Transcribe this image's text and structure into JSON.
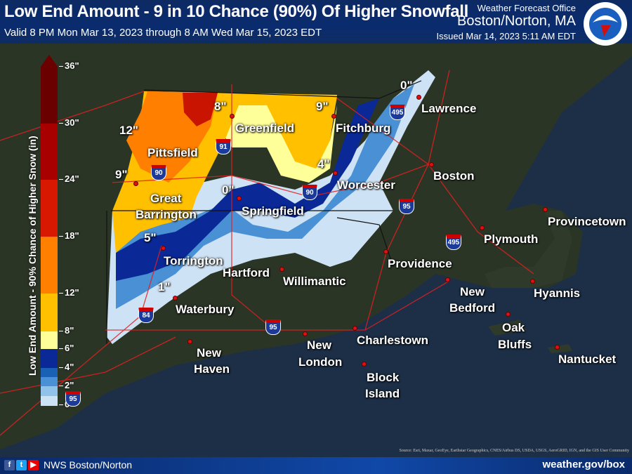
{
  "header": {
    "title": "Low End Amount - 9 in 10 Chance (90%) Of Higher Snowfall",
    "valid": "Valid 8 PM Mon Mar 13, 2023 through 8 AM Wed Mar 15, 2023 EDT",
    "office_label": "Weather Forecast Office",
    "office": "Boston/Norton, MA",
    "issued": "Issued Mar 14, 2023 5:11 AM EDT",
    "logo_text": "NATIONAL WEATHER SERVICE"
  },
  "legend": {
    "title": "Low End Amount - 90% Chance of Higher Snow (in)",
    "ticks": [
      "36\"",
      "30\"",
      "24\"",
      "18\"",
      "12\"",
      "8\"",
      "6\"",
      "4\"",
      "2\"",
      "0\""
    ],
    "bins": [
      {
        "range": "30-36",
        "color": "#6b0000"
      },
      {
        "range": "24-30",
        "color": "#a80000"
      },
      {
        "range": "18-24",
        "color": "#d81800"
      },
      {
        "range": "12-18",
        "color": "#ff8000"
      },
      {
        "range": "8-12",
        "color": "#ffc000"
      },
      {
        "range": "6-8",
        "color": "#ffff99"
      },
      {
        "range": "4-6",
        "color": "#0a2896"
      },
      {
        "range": "3-4",
        "color": "#1a60b4"
      },
      {
        "range": "2-3",
        "color": "#4a90d4"
      },
      {
        "range": "1-2",
        "color": "#90c2ea"
      },
      {
        "range": "0-1",
        "color": "#cde2f4"
      }
    ]
  },
  "cities": [
    "Lawrence",
    "Greenfield",
    "Fitchburg",
    "Pittsfield",
    "Boston",
    "Great",
    "Barrington",
    "Worcester",
    "Springfield",
    "Torrington",
    "Hartford",
    "Willimantic",
    "Providence",
    "Plymouth",
    "Provincetown",
    "New",
    "Bedford",
    "Hyannis",
    "Waterbury",
    "Oak",
    "Bluffs",
    "Charlestown",
    "Nantucket",
    "New",
    "Haven",
    "New",
    "London",
    "Block",
    "Island"
  ],
  "amounts": [
    "12\"",
    "9\"",
    "5\"",
    "1\"",
    "8\"",
    "0\"",
    "9\"",
    "4\"",
    "0\""
  ],
  "shields": [
    "91",
    "90",
    "90",
    "495",
    "95",
    "495",
    "84",
    "95",
    "95"
  ],
  "source": "Source: Esri, Maxar, GeoEye, Earthstar Geographics, CNES/Airbus DS, USDA, USGS, AeroGRID, IGN, and the GIS User Community",
  "footer": {
    "social": [
      "f",
      "t",
      "▶"
    ],
    "name": "NWS Boston/Norton",
    "url": "weather.gov/box"
  }
}
